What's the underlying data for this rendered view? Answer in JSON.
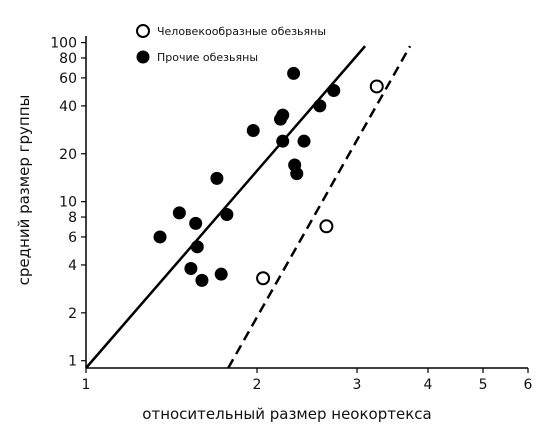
{
  "chart_data": {
    "type": "scatter",
    "xlabel": "относительный размер неокортекса",
    "ylabel": "средний размер группы",
    "x_scale": "log",
    "y_scale": "log",
    "xlim": [
      1,
      6
    ],
    "ylim": [
      0.9,
      110
    ],
    "x_ticks": [
      1,
      2,
      3,
      4,
      5,
      6
    ],
    "y_ticks": [
      1,
      2,
      4,
      6,
      8,
      10,
      20,
      40,
      60,
      80,
      100
    ],
    "legend_position": "top-left",
    "grid": false,
    "series": [
      {
        "name": "Человекообразные обезьяны",
        "marker": "open-circle",
        "color": "#000000",
        "points": [
          {
            "x": 2.05,
            "y": 3.3
          },
          {
            "x": 2.65,
            "y": 7
          },
          {
            "x": 3.25,
            "y": 53
          }
        ]
      },
      {
        "name": "Прочие обезьяны",
        "marker": "filled-circle",
        "color": "#000000",
        "points": [
          {
            "x": 1.35,
            "y": 6
          },
          {
            "x": 1.46,
            "y": 8.5
          },
          {
            "x": 1.53,
            "y": 3.8
          },
          {
            "x": 1.56,
            "y": 7.3
          },
          {
            "x": 1.57,
            "y": 5.2
          },
          {
            "x": 1.6,
            "y": 3.2
          },
          {
            "x": 1.7,
            "y": 14
          },
          {
            "x": 1.73,
            "y": 3.5
          },
          {
            "x": 1.77,
            "y": 8.3
          },
          {
            "x": 1.97,
            "y": 28
          },
          {
            "x": 2.2,
            "y": 33
          },
          {
            "x": 2.22,
            "y": 35
          },
          {
            "x": 2.22,
            "y": 24
          },
          {
            "x": 2.33,
            "y": 17
          },
          {
            "x": 2.35,
            "y": 15
          },
          {
            "x": 2.32,
            "y": 64
          },
          {
            "x": 2.42,
            "y": 24
          },
          {
            "x": 2.58,
            "y": 40
          },
          {
            "x": 2.73,
            "y": 50
          }
        ]
      }
    ],
    "trend_lines": [
      {
        "style": "solid",
        "color": "#000000",
        "x": [
          1,
          3.1
        ],
        "y": [
          0.9,
          95
        ]
      },
      {
        "style": "dashed",
        "color": "#000000",
        "x": [
          1.78,
          3.72
        ],
        "y": [
          0.9,
          95
        ]
      }
    ]
  }
}
